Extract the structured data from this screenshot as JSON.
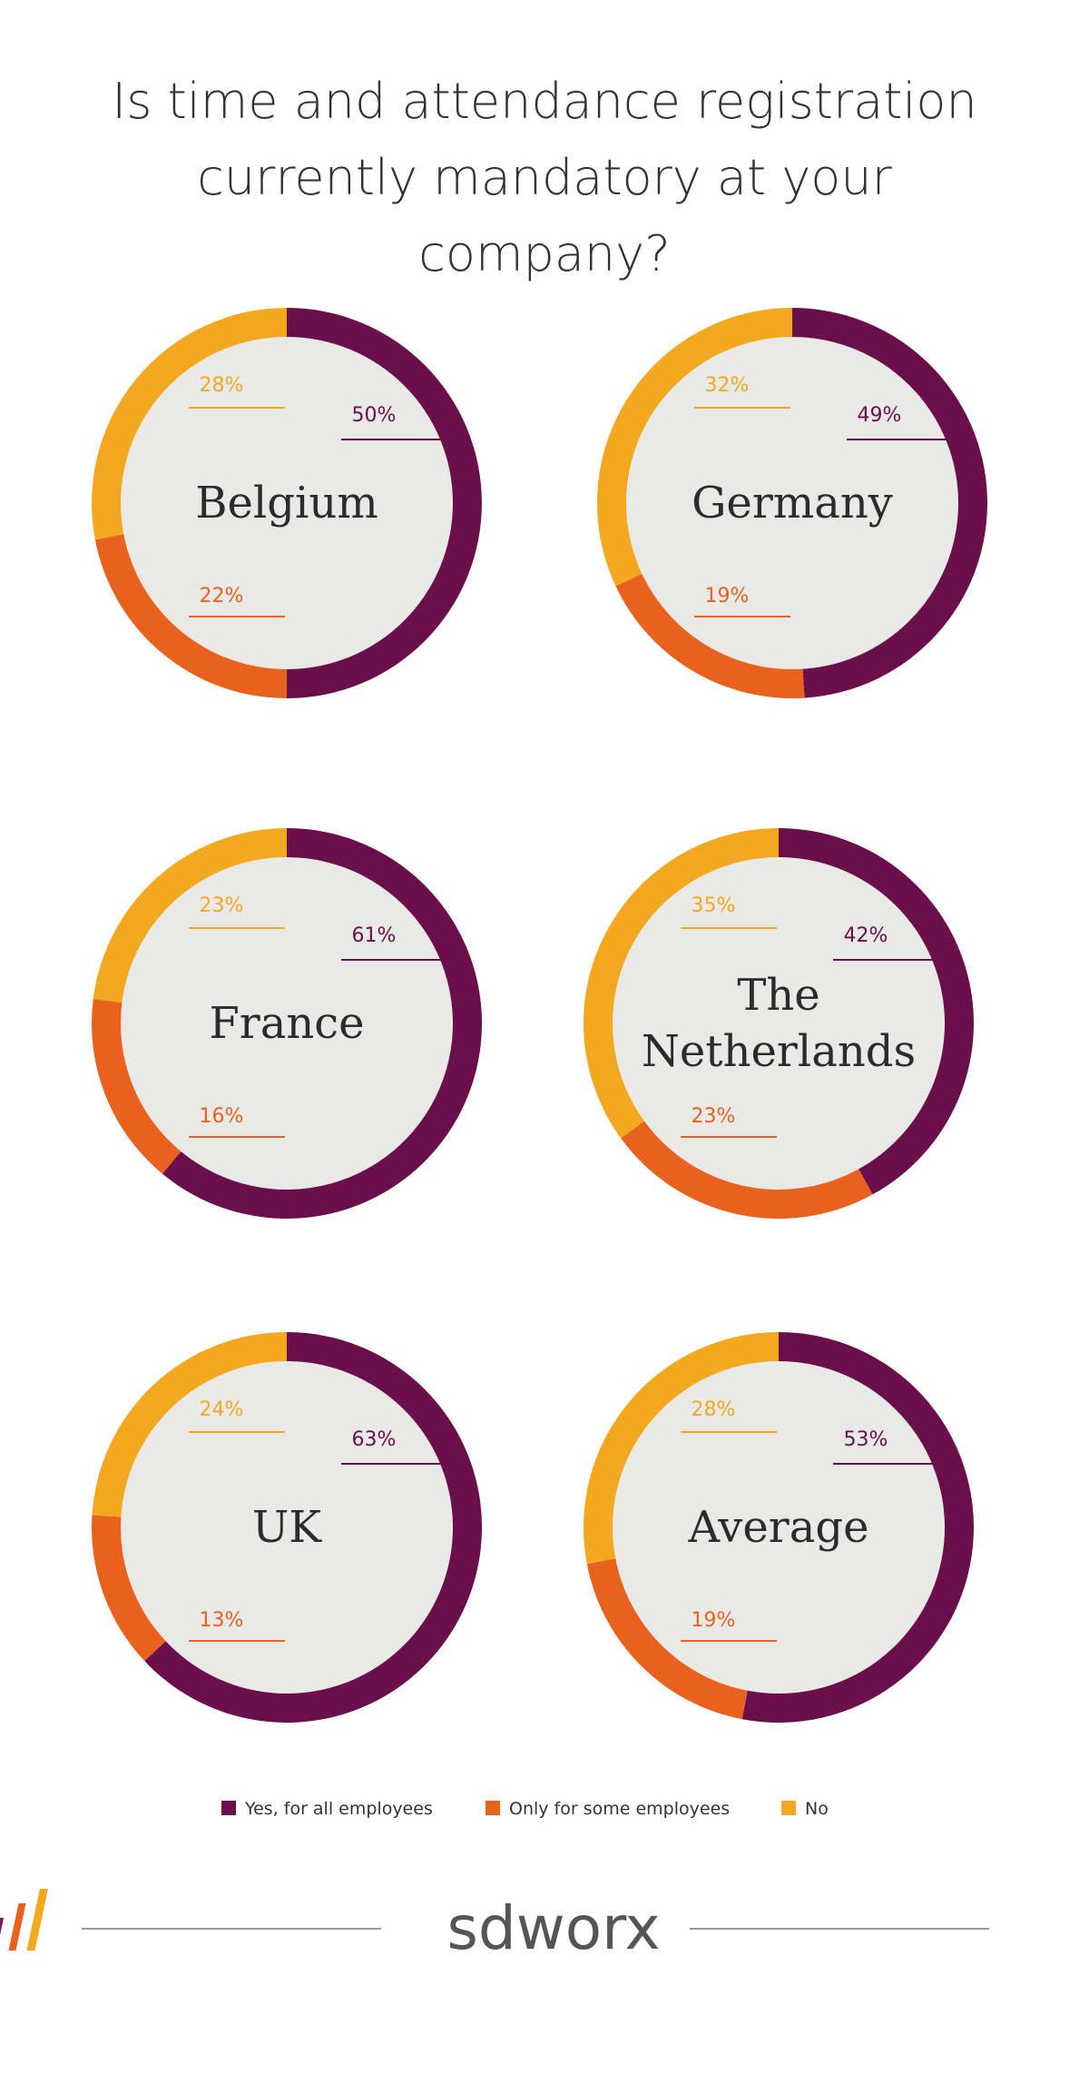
{
  "title": "Is time and attendance registration currently mandatory at your company?",
  "legend": [
    {
      "name": "Yes, for all employees",
      "color": "#6b0f4a"
    },
    {
      "name": "Only for some employees",
      "color": "#e8621e"
    },
    {
      "name": "No",
      "color": "#f2a91f"
    }
  ],
  "brand": "sdworx",
  "chart_data": [
    {
      "type": "donut",
      "title": "Belgium",
      "values": [
        50,
        22,
        28
      ],
      "value_labels": [
        "50%",
        "22%",
        "28%"
      ]
    },
    {
      "type": "donut",
      "title": "Germany",
      "values": [
        49,
        19,
        32
      ],
      "value_labels": [
        "49%",
        "19%",
        "32%"
      ]
    },
    {
      "type": "donut",
      "title": "France",
      "values": [
        61,
        16,
        23
      ],
      "value_labels": [
        "61%",
        "16%",
        "23%"
      ]
    },
    {
      "type": "donut",
      "title": "The Netherlands",
      "values": [
        42,
        23,
        35
      ],
      "value_labels": [
        "42%",
        "23%",
        "35%"
      ]
    },
    {
      "type": "donut",
      "title": "UK",
      "values": [
        63,
        13,
        24
      ],
      "value_labels": [
        "63%",
        "13%",
        "24%"
      ]
    },
    {
      "type": "donut",
      "title": "Average",
      "values": [
        53,
        19,
        28
      ],
      "value_labels": [
        "53%",
        "19%",
        "28%"
      ]
    }
  ]
}
